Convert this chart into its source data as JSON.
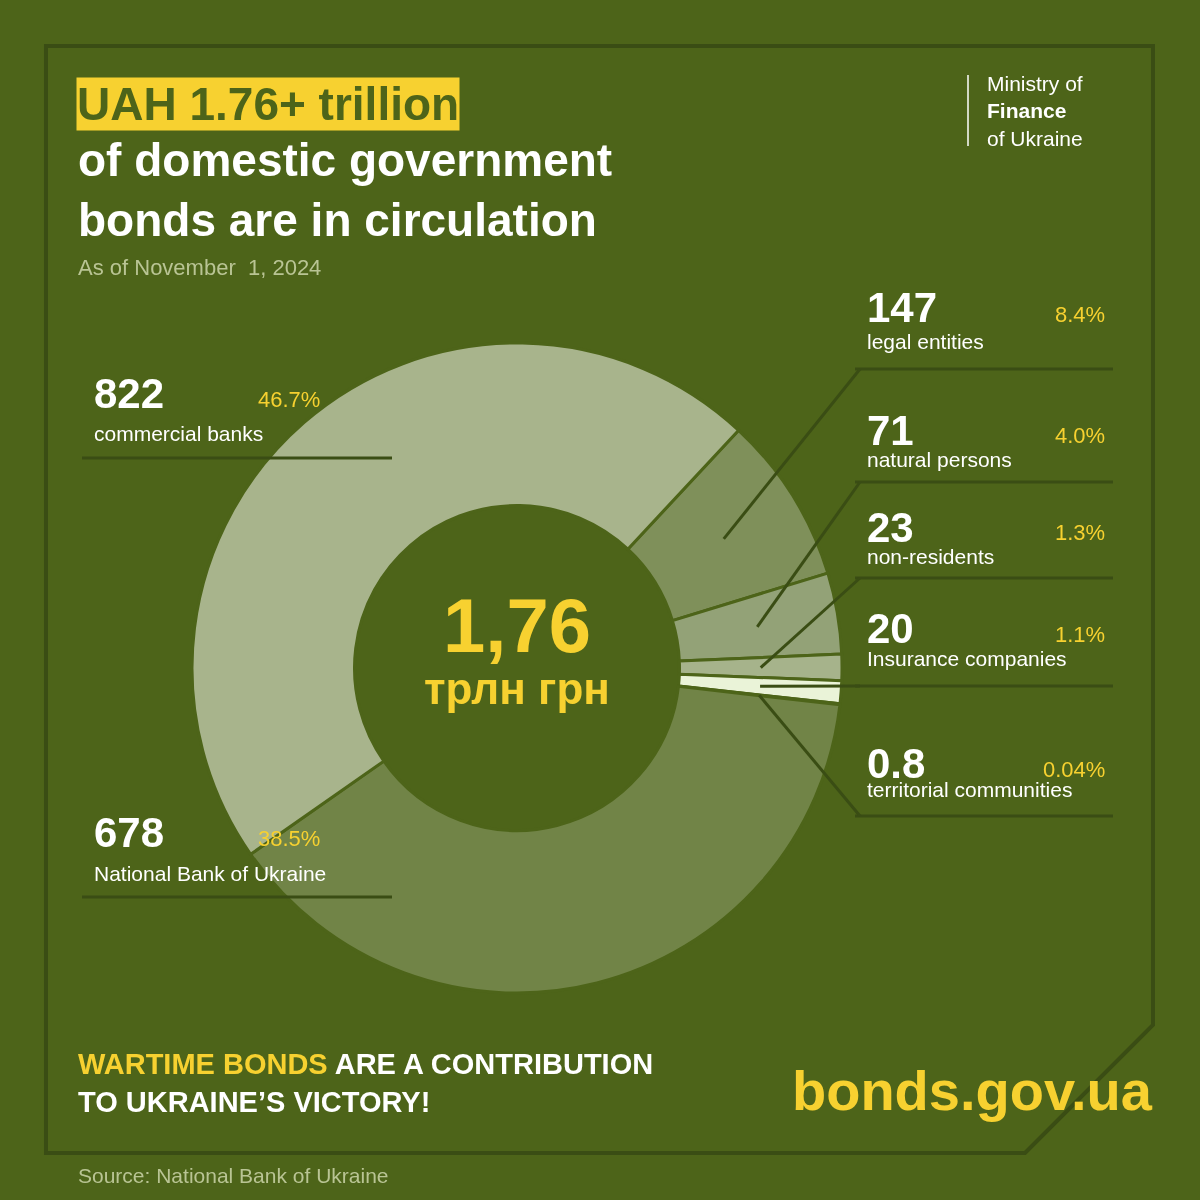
{
  "chart_data": {
    "type": "donut",
    "title": "UAH 1.76+ trillion\nof domestic government\nbonds are in circulation",
    "subtitle": "As of November  1, 2024",
    "categories": [
      "legal entities",
      "natural persons",
      "non-residents",
      "Insurance companies",
      "territorial communities",
      "National Bank of Ukraine",
      "commercial banks"
    ],
    "values": [
      147,
      71,
      23,
      20,
      0.8,
      678,
      822
    ],
    "colors": [
      "#7f905a",
      "#93a277",
      "#a6b38b",
      "#eaf3d8",
      "#b3c09a",
      "#718447",
      "#a8b48c"
    ],
    "data_labels": true,
    "annotations": [
      {
        "text": "8.4%",
        "x": "legal entities"
      },
      {
        "text": "4.0%",
        "x": "natural persons"
      },
      {
        "text": "1.3%",
        "x": "non-residents"
      },
      {
        "text": "1.1%",
        "x": "Insurance companies"
      },
      {
        "text": "0.04%",
        "x": "territorial communities"
      },
      {
        "text": "38.5%",
        "x": "National Bank of Ukraine"
      },
      {
        "text": "46.7%",
        "x": "commercial banks"
      },
      "1,76\nтрлн грн",
      "Ministry of\nFinance\nof Ukraine",
      "WARTIME BONDS",
      "ARE A CONTRIBUTION\nTO UKRAINE’S VICTORY!",
      "bonds.gov.ua",
      "Source: National Bank of Ukraine"
    ]
  }
}
